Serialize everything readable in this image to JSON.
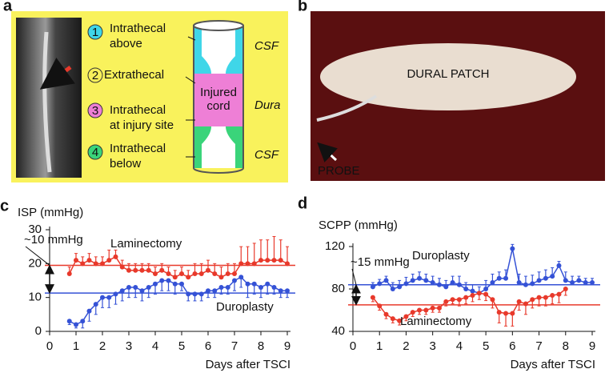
{
  "panel_labels": [
    "a",
    "b",
    "c",
    "d"
  ],
  "diagram": {
    "items": [
      {
        "number": "1",
        "lines": [
          "Intrathecal",
          "above"
        ],
        "color": "#3fd6e8"
      },
      {
        "number": "2",
        "lines": [
          "Extrathecal"
        ],
        "color": "#f7ef5a"
      },
      {
        "number": "3",
        "lines": [
          "Intrathecal",
          "at injury site"
        ],
        "color": "#ee7fd6"
      },
      {
        "number": "4",
        "lines": [
          "Intrathecal",
          "below"
        ],
        "color": "#3ad47a"
      }
    ],
    "cord_label": [
      "Injured",
      "cord"
    ],
    "annotations": [
      "CSF",
      "Dura",
      "CSF"
    ]
  },
  "photo": {
    "labels": [
      "DURAL PATCH",
      "PROBE"
    ]
  },
  "chart_data": [
    {
      "type": "line",
      "title": "ISP (mmHg)",
      "x_label": "Days after TSCI",
      "xlim": [
        0,
        9
      ],
      "xticks": [
        0,
        1,
        2,
        3,
        4,
        5,
        6,
        7,
        8,
        9
      ],
      "ylim": [
        0,
        30
      ],
      "yticks": [
        0,
        10,
        20,
        30
      ],
      "annotation": "~10 mmHg",
      "reference_lines": [
        {
          "value": 19.5,
          "color": "#e8392b"
        },
        {
          "value": 11.3,
          "color": "#3552d6"
        }
      ],
      "series": [
        {
          "name": "Laminectomy",
          "color": "#e8392b",
          "error_side": "up",
          "x": [
            0.75,
            1,
            1.25,
            1.5,
            1.75,
            2,
            2.25,
            2.5,
            2.75,
            3,
            3.25,
            3.5,
            3.75,
            4,
            4.25,
            4.5,
            4.75,
            5,
            5.25,
            5.5,
            5.75,
            6,
            6.25,
            6.5,
            6.75,
            7,
            7.25,
            7.5,
            7.75,
            8,
            8.25,
            8.5,
            8.75,
            9
          ],
          "values": [
            17,
            21,
            20,
            21,
            20,
            20,
            21,
            22,
            19,
            18,
            18,
            18,
            18,
            17,
            18,
            17,
            16,
            17,
            16,
            17,
            17,
            18,
            17,
            16,
            17,
            17,
            20,
            20,
            20,
            21,
            21,
            21,
            21,
            20
          ],
          "errors": [
            2,
            2,
            2,
            2,
            2,
            2,
            3,
            2,
            2,
            2,
            2,
            2,
            2,
            2,
            2,
            2,
            2,
            2,
            2,
            3,
            3,
            3,
            3,
            3,
            3,
            3,
            5,
            5,
            6,
            6,
            6,
            7,
            6,
            5
          ]
        },
        {
          "name": "Duroplasty",
          "color": "#3552d6",
          "error_side": "down",
          "x": [
            0.75,
            1,
            1.25,
            1.5,
            1.75,
            2,
            2.25,
            2.5,
            2.75,
            3,
            3.25,
            3.5,
            3.75,
            4,
            4.25,
            4.5,
            4.75,
            5,
            5.25,
            5.5,
            5.75,
            6,
            6.25,
            6.5,
            6.75,
            7,
            7.25,
            7.5,
            7.75,
            8,
            8.25,
            8.5,
            8.75,
            9
          ],
          "values": [
            3,
            2,
            3,
            6,
            8,
            10,
            10,
            11,
            12,
            13,
            13,
            12,
            13,
            14,
            15,
            15,
            14,
            14,
            11,
            11,
            11,
            12,
            12,
            13,
            13,
            15,
            16,
            14,
            14,
            13,
            14,
            13,
            12,
            12
          ],
          "errors": [
            1,
            1,
            2,
            3,
            3,
            3,
            3,
            3,
            3,
            3,
            3,
            3,
            3,
            3,
            3,
            3,
            3,
            2,
            2,
            2,
            2,
            2,
            2,
            2,
            2,
            3,
            3,
            4,
            3,
            3,
            3,
            2,
            2,
            2
          ]
        }
      ]
    },
    {
      "type": "line",
      "title": "SCPP (mmHg)",
      "x_label": "Days after TSCI",
      "xlim": [
        0,
        9
      ],
      "xticks": [
        0,
        1,
        2,
        3,
        4,
        5,
        6,
        7,
        8,
        9
      ],
      "ylim": [
        40,
        120
      ],
      "yticks": [
        40,
        80,
        120
      ],
      "annotation": "~15 mmHg",
      "reference_lines": [
        {
          "value": 84,
          "color": "#3552d6"
        },
        {
          "value": 65,
          "color": "#e8392b"
        }
      ],
      "series": [
        {
          "name": "Duroplasty",
          "color": "#3552d6",
          "error_side": "up",
          "x": [
            0.75,
            1,
            1.25,
            1.5,
            1.75,
            2,
            2.25,
            2.5,
            2.75,
            3,
            3.25,
            3.5,
            3.75,
            4,
            4.25,
            4.5,
            4.75,
            5,
            5.25,
            5.5,
            5.75,
            6,
            6.25,
            6.5,
            6.75,
            7,
            7.25,
            7.5,
            7.75,
            8,
            8.25,
            8.5,
            8.75,
            9
          ],
          "values": [
            82,
            85,
            88,
            80,
            82,
            85,
            88,
            90,
            88,
            86,
            84,
            82,
            86,
            84,
            80,
            78,
            76,
            80,
            86,
            90,
            90,
            118,
            86,
            84,
            85,
            88,
            90,
            92,
            102,
            88,
            86,
            88,
            86,
            86
          ],
          "errors": [
            4,
            4,
            4,
            6,
            6,
            6,
            6,
            6,
            6,
            6,
            6,
            6,
            6,
            8,
            6,
            6,
            6,
            8,
            8,
            6,
            8,
            4,
            8,
            8,
            8,
            8,
            8,
            8,
            4,
            8,
            6,
            4,
            4,
            4
          ]
        },
        {
          "name": "Laminectomy",
          "color": "#e8392b",
          "error_side": "down",
          "x": [
            0.75,
            1,
            1.25,
            1.5,
            1.75,
            2,
            2.25,
            2.5,
            2.75,
            3,
            3.25,
            3.5,
            3.75,
            4,
            4.25,
            4.5,
            4.75,
            5,
            5.25,
            5.5,
            5.75,
            6,
            6.25,
            6.5,
            6.75,
            7,
            7.25,
            7.5,
            7.75,
            8
          ],
          "values": [
            72,
            64,
            56,
            52,
            50,
            54,
            58,
            60,
            60,
            62,
            62,
            68,
            70,
            70,
            72,
            74,
            76,
            75,
            70,
            58,
            57,
            57,
            68,
            66,
            70,
            72,
            72,
            74,
            75,
            80
          ],
          "errors": [
            4,
            4,
            4,
            4,
            4,
            4,
            4,
            4,
            4,
            4,
            4,
            4,
            4,
            6,
            6,
            6,
            6,
            6,
            8,
            10,
            12,
            12,
            8,
            10,
            8,
            8,
            8,
            8,
            8,
            6
          ]
        }
      ]
    }
  ]
}
